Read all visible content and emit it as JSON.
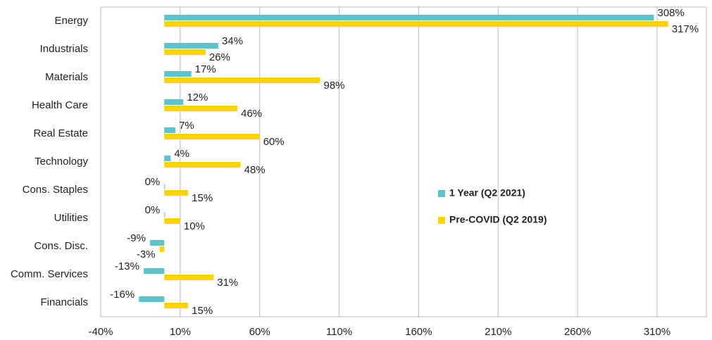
{
  "chart_data": {
    "type": "hbar",
    "categories": [
      "Energy",
      "Industrials",
      "Materials",
      "Health Care",
      "Real Estate",
      "Technology",
      "Cons. Staples",
      "Utilities",
      "Cons. Disc.",
      "Comm. Services",
      "Financials"
    ],
    "series": [
      {
        "name": "1 Year (Q2 2021)",
        "color": "#5bc5cc",
        "values": [
          308,
          34,
          17,
          12,
          7,
          4,
          0,
          0,
          -9,
          -13,
          -16
        ],
        "value_labels": [
          "308%",
          "34%",
          "17%",
          "12%",
          "7%",
          "4%",
          "0%",
          "0%",
          "-9%",
          "-13%",
          "-16%"
        ]
      },
      {
        "name": "Pre-COVID (Q2 2019)",
        "color": "#ffd200",
        "values": [
          317,
          26,
          98,
          46,
          60,
          48,
          15,
          10,
          -3,
          31,
          15
        ],
        "value_labels": [
          "317%",
          "26%",
          "98%",
          "46%",
          "60%",
          "48%",
          "15%",
          "10%",
          "-3%",
          "31%",
          "15%"
        ]
      }
    ],
    "xlim": [
      -40,
      341
    ],
    "xticks": [
      {
        "value": -40,
        "label": "-40%"
      },
      {
        "value": 10,
        "label": "10%"
      },
      {
        "value": 60,
        "label": "60%"
      },
      {
        "value": 110,
        "label": "110%"
      },
      {
        "value": 160,
        "label": "160%"
      },
      {
        "value": 210,
        "label": "210%"
      },
      {
        "value": 260,
        "label": "260%"
      },
      {
        "value": 310,
        "label": "310%"
      }
    ],
    "grid": true,
    "legend": "center-right"
  }
}
